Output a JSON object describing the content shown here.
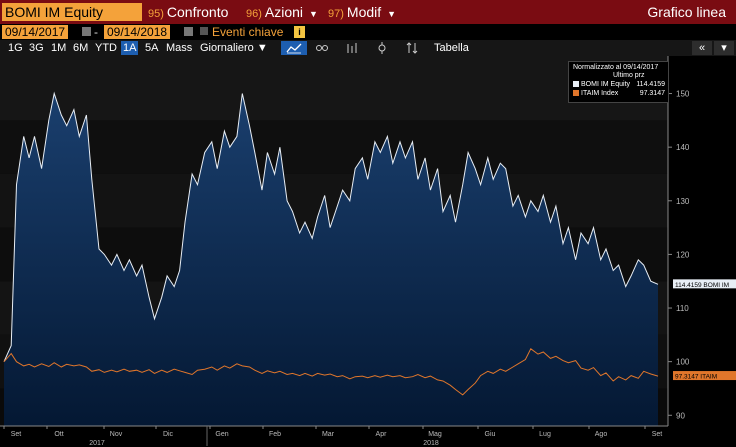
{
  "toolbar": {
    "ticker": "BOMI IM Equity",
    "menus": [
      {
        "num": "95)",
        "label": "Confronto"
      },
      {
        "num": "96)",
        "label": "Azioni"
      },
      {
        "num": "97)",
        "label": "Modif"
      }
    ],
    "title": "Grafico linea"
  },
  "range": {
    "start": "09/14/2017",
    "end": "09/14/2018",
    "dash": "-",
    "events_label": "Eventi chiave",
    "info_glyph": "i"
  },
  "zoom": {
    "buttons": [
      "1G",
      "3G",
      "1M",
      "6M",
      "YTD",
      "1A",
      "5A",
      "Mass"
    ],
    "selected": "1A",
    "frequency": "Giornaliero ▼",
    "table_label": "Tabella",
    "nav_prev": "«",
    "nav_menu": "▾"
  },
  "colors": {
    "brand_bar": "#7a0c12",
    "accent": "#f4a23a",
    "selected": "#1d5eb0",
    "series1": "#e8eef5",
    "series2": "#e0762b"
  },
  "chart_data": {
    "type": "line",
    "x_start": "2017-09-14",
    "x_end": "2018-09-14",
    "ylim": [
      88,
      157
    ],
    "yticks": [
      90,
      100,
      110,
      120,
      130,
      140,
      150
    ],
    "x_ticks": [
      "Set",
      "Ott",
      "Nov",
      "Dic",
      "Gen",
      "Feb",
      "Mar",
      "Apr",
      "Mag",
      "Giu",
      "Lug",
      "Ago",
      "Set"
    ],
    "x_years": [
      "2017",
      "2018"
    ],
    "legend": {
      "header": "Normalizzato al 09/14/2017",
      "subheader": "Ultimo prz",
      "entries": [
        {
          "name": "BOMI IM Equity",
          "value": "114.4159"
        },
        {
          "name": "ITAIM Index",
          "value": "97.3147"
        }
      ]
    },
    "last_labels": [
      {
        "text": "114.4159 BOMI IM",
        "value": 114.4159
      },
      {
        "text": "97.3147 ITAIM",
        "value": 97.3147
      }
    ],
    "series": [
      {
        "name": "BOMI IM Equity",
        "points": [
          [
            "2017-09-14",
            100
          ],
          [
            "2017-09-18",
            103
          ],
          [
            "2017-09-21",
            133
          ],
          [
            "2017-09-25",
            142
          ],
          [
            "2017-09-28",
            138
          ],
          [
            "2017-10-01",
            142
          ],
          [
            "2017-10-05",
            136
          ],
          [
            "2017-10-09",
            145
          ],
          [
            "2017-10-12",
            150
          ],
          [
            "2017-10-16",
            146
          ],
          [
            "2017-10-19",
            144
          ],
          [
            "2017-10-23",
            147
          ],
          [
            "2017-10-26",
            142
          ],
          [
            "2017-10-30",
            146
          ],
          [
            "2017-11-02",
            134
          ],
          [
            "2017-11-06",
            121
          ],
          [
            "2017-11-09",
            120
          ],
          [
            "2017-11-13",
            118
          ],
          [
            "2017-11-16",
            120
          ],
          [
            "2017-11-20",
            117
          ],
          [
            "2017-11-23",
            119
          ],
          [
            "2017-11-27",
            116
          ],
          [
            "2017-11-30",
            118
          ],
          [
            "2017-12-04",
            112
          ],
          [
            "2017-12-07",
            108
          ],
          [
            "2017-12-11",
            112
          ],
          [
            "2017-12-14",
            116
          ],
          [
            "2017-12-18",
            114
          ],
          [
            "2017-12-21",
            117
          ],
          [
            "2017-12-24",
            126
          ],
          [
            "2017-12-28",
            135
          ],
          [
            "2017-12-31",
            133
          ],
          [
            "2018-01-04",
            139
          ],
          [
            "2018-01-08",
            141
          ],
          [
            "2018-01-11",
            136
          ],
          [
            "2018-01-15",
            143
          ],
          [
            "2018-01-18",
            140
          ],
          [
            "2018-01-22",
            142
          ],
          [
            "2018-01-25",
            150
          ],
          [
            "2018-01-29",
            144
          ],
          [
            "2018-02-01",
            139
          ],
          [
            "2018-02-05",
            132
          ],
          [
            "2018-02-08",
            139
          ],
          [
            "2018-02-12",
            135
          ],
          [
            "2018-02-15",
            140
          ],
          [
            "2018-02-19",
            130
          ],
          [
            "2018-02-22",
            128
          ],
          [
            "2018-02-26",
            124
          ],
          [
            "2018-03-01",
            126
          ],
          [
            "2018-03-05",
            123
          ],
          [
            "2018-03-08",
            127
          ],
          [
            "2018-03-12",
            131
          ],
          [
            "2018-03-15",
            125
          ],
          [
            "2018-03-19",
            129
          ],
          [
            "2018-03-22",
            132
          ],
          [
            "2018-03-26",
            130
          ],
          [
            "2018-03-29",
            136
          ],
          [
            "2018-04-02",
            138
          ],
          [
            "2018-04-05",
            134
          ],
          [
            "2018-04-09",
            141
          ],
          [
            "2018-04-12",
            139
          ],
          [
            "2018-04-16",
            142
          ],
          [
            "2018-04-19",
            137
          ],
          [
            "2018-04-23",
            141
          ],
          [
            "2018-04-26",
            138
          ],
          [
            "2018-04-30",
            141
          ],
          [
            "2018-05-03",
            134
          ],
          [
            "2018-05-07",
            138
          ],
          [
            "2018-05-10",
            132
          ],
          [
            "2018-05-14",
            136
          ],
          [
            "2018-05-17",
            128
          ],
          [
            "2018-05-21",
            131
          ],
          [
            "2018-05-24",
            126
          ],
          [
            "2018-05-28",
            133
          ],
          [
            "2018-05-31",
            139
          ],
          [
            "2018-06-04",
            136
          ],
          [
            "2018-06-07",
            133
          ],
          [
            "2018-06-11",
            138
          ],
          [
            "2018-06-14",
            134
          ],
          [
            "2018-06-18",
            137
          ],
          [
            "2018-06-21",
            136
          ],
          [
            "2018-06-25",
            129
          ],
          [
            "2018-06-28",
            131
          ],
          [
            "2018-07-02",
            127
          ],
          [
            "2018-07-05",
            130
          ],
          [
            "2018-07-09",
            128
          ],
          [
            "2018-07-12",
            131
          ],
          [
            "2018-07-16",
            126
          ],
          [
            "2018-07-19",
            129
          ],
          [
            "2018-07-23",
            122
          ],
          [
            "2018-07-26",
            125
          ],
          [
            "2018-07-30",
            119
          ],
          [
            "2018-08-02",
            124
          ],
          [
            "2018-08-06",
            122
          ],
          [
            "2018-08-09",
            125
          ],
          [
            "2018-08-13",
            119
          ],
          [
            "2018-08-16",
            121
          ],
          [
            "2018-08-20",
            117
          ],
          [
            "2018-08-23",
            118
          ],
          [
            "2018-08-27",
            114
          ],
          [
            "2018-08-30",
            116
          ],
          [
            "2018-09-03",
            119
          ],
          [
            "2018-09-06",
            118
          ],
          [
            "2018-09-10",
            115
          ],
          [
            "2018-09-14",
            114.4159
          ]
        ]
      },
      {
        "name": "ITAIM Index",
        "points": [
          [
            "2017-09-14",
            100
          ],
          [
            "2017-09-18",
            101.5
          ],
          [
            "2017-09-21",
            100
          ],
          [
            "2017-09-25",
            99.2
          ],
          [
            "2017-09-28",
            99.5
          ],
          [
            "2017-10-01",
            99
          ],
          [
            "2017-10-05",
            99.6
          ],
          [
            "2017-10-09",
            99.1
          ],
          [
            "2017-10-12",
            99.8
          ],
          [
            "2017-10-16",
            99
          ],
          [
            "2017-10-19",
            99.5
          ],
          [
            "2017-10-23",
            99.2
          ],
          [
            "2017-10-26",
            99.4
          ],
          [
            "2017-10-30",
            99
          ],
          [
            "2017-11-02",
            98.2
          ],
          [
            "2017-11-06",
            98.5
          ],
          [
            "2017-11-09",
            98
          ],
          [
            "2017-11-13",
            98.4
          ],
          [
            "2017-11-16",
            98.1
          ],
          [
            "2017-11-20",
            98.6
          ],
          [
            "2017-11-23",
            98.2
          ],
          [
            "2017-11-27",
            98.4
          ],
          [
            "2017-11-30",
            98
          ],
          [
            "2017-12-04",
            98.5
          ],
          [
            "2017-12-07",
            97.8
          ],
          [
            "2017-12-11",
            98.4
          ],
          [
            "2017-12-14",
            98
          ],
          [
            "2017-12-18",
            98.6
          ],
          [
            "2017-12-21",
            98.3
          ],
          [
            "2017-12-24",
            98
          ],
          [
            "2017-12-28",
            97.6
          ],
          [
            "2017-12-31",
            98.4
          ],
          [
            "2018-01-04",
            98.6
          ],
          [
            "2018-01-08",
            99
          ],
          [
            "2018-01-11",
            98.4
          ],
          [
            "2018-01-15",
            99.2
          ],
          [
            "2018-01-18",
            98.8
          ],
          [
            "2018-01-22",
            99.6
          ],
          [
            "2018-01-25",
            99.2
          ],
          [
            "2018-01-29",
            99
          ],
          [
            "2018-02-01",
            98.4
          ],
          [
            "2018-02-05",
            97.8
          ],
          [
            "2018-02-08",
            98.3
          ],
          [
            "2018-02-12",
            97.9
          ],
          [
            "2018-02-15",
            98.2
          ],
          [
            "2018-02-19",
            97.6
          ],
          [
            "2018-02-22",
            97.8
          ],
          [
            "2018-02-26",
            97.4
          ],
          [
            "2018-03-01",
            97.8
          ],
          [
            "2018-03-05",
            97.3
          ],
          [
            "2018-03-08",
            97.8
          ],
          [
            "2018-03-12",
            97.5
          ],
          [
            "2018-03-15",
            97.7
          ],
          [
            "2018-03-19",
            97.2
          ],
          [
            "2018-03-22",
            97.4
          ],
          [
            "2018-03-26",
            96.8
          ],
          [
            "2018-03-29",
            97.2
          ],
          [
            "2018-04-02",
            97.3
          ],
          [
            "2018-04-05",
            97
          ],
          [
            "2018-04-09",
            97.4
          ],
          [
            "2018-04-12",
            97.1
          ],
          [
            "2018-04-16",
            97.5
          ],
          [
            "2018-04-19",
            97.2
          ],
          [
            "2018-04-23",
            97.4
          ],
          [
            "2018-04-26",
            97
          ],
          [
            "2018-04-30",
            97.2
          ],
          [
            "2018-05-03",
            97.6
          ],
          [
            "2018-05-07",
            97
          ],
          [
            "2018-05-10",
            97.3
          ],
          [
            "2018-05-14",
            96.6
          ],
          [
            "2018-05-17",
            96.4
          ],
          [
            "2018-05-21",
            95.6
          ],
          [
            "2018-05-24",
            94.8
          ],
          [
            "2018-05-28",
            93.8
          ],
          [
            "2018-05-31",
            94.8
          ],
          [
            "2018-06-04",
            96
          ],
          [
            "2018-06-07",
            97.4
          ],
          [
            "2018-06-11",
            98.2
          ],
          [
            "2018-06-14",
            97.8
          ],
          [
            "2018-06-18",
            98.6
          ],
          [
            "2018-06-21",
            98.2
          ],
          [
            "2018-06-25",
            99
          ],
          [
            "2018-06-28",
            99.6
          ],
          [
            "2018-07-02",
            100.4
          ],
          [
            "2018-07-05",
            102.4
          ],
          [
            "2018-07-09",
            101.4
          ],
          [
            "2018-07-12",
            101.8
          ],
          [
            "2018-07-16",
            100.6
          ],
          [
            "2018-07-19",
            101
          ],
          [
            "2018-07-23",
            100.2
          ],
          [
            "2018-07-26",
            99.8
          ],
          [
            "2018-07-30",
            100.2
          ],
          [
            "2018-08-02",
            98.8
          ],
          [
            "2018-08-06",
            98.4
          ],
          [
            "2018-08-09",
            98.9
          ],
          [
            "2018-08-13",
            97.4
          ],
          [
            "2018-08-16",
            97.9
          ],
          [
            "2018-08-20",
            96.4
          ],
          [
            "2018-08-23",
            97.2
          ],
          [
            "2018-08-27",
            96.6
          ],
          [
            "2018-08-30",
            97.4
          ],
          [
            "2018-09-03",
            96.9
          ],
          [
            "2018-09-06",
            98.2
          ],
          [
            "2018-09-10",
            97.7
          ],
          [
            "2018-09-14",
            97.3147
          ]
        ]
      }
    ]
  }
}
